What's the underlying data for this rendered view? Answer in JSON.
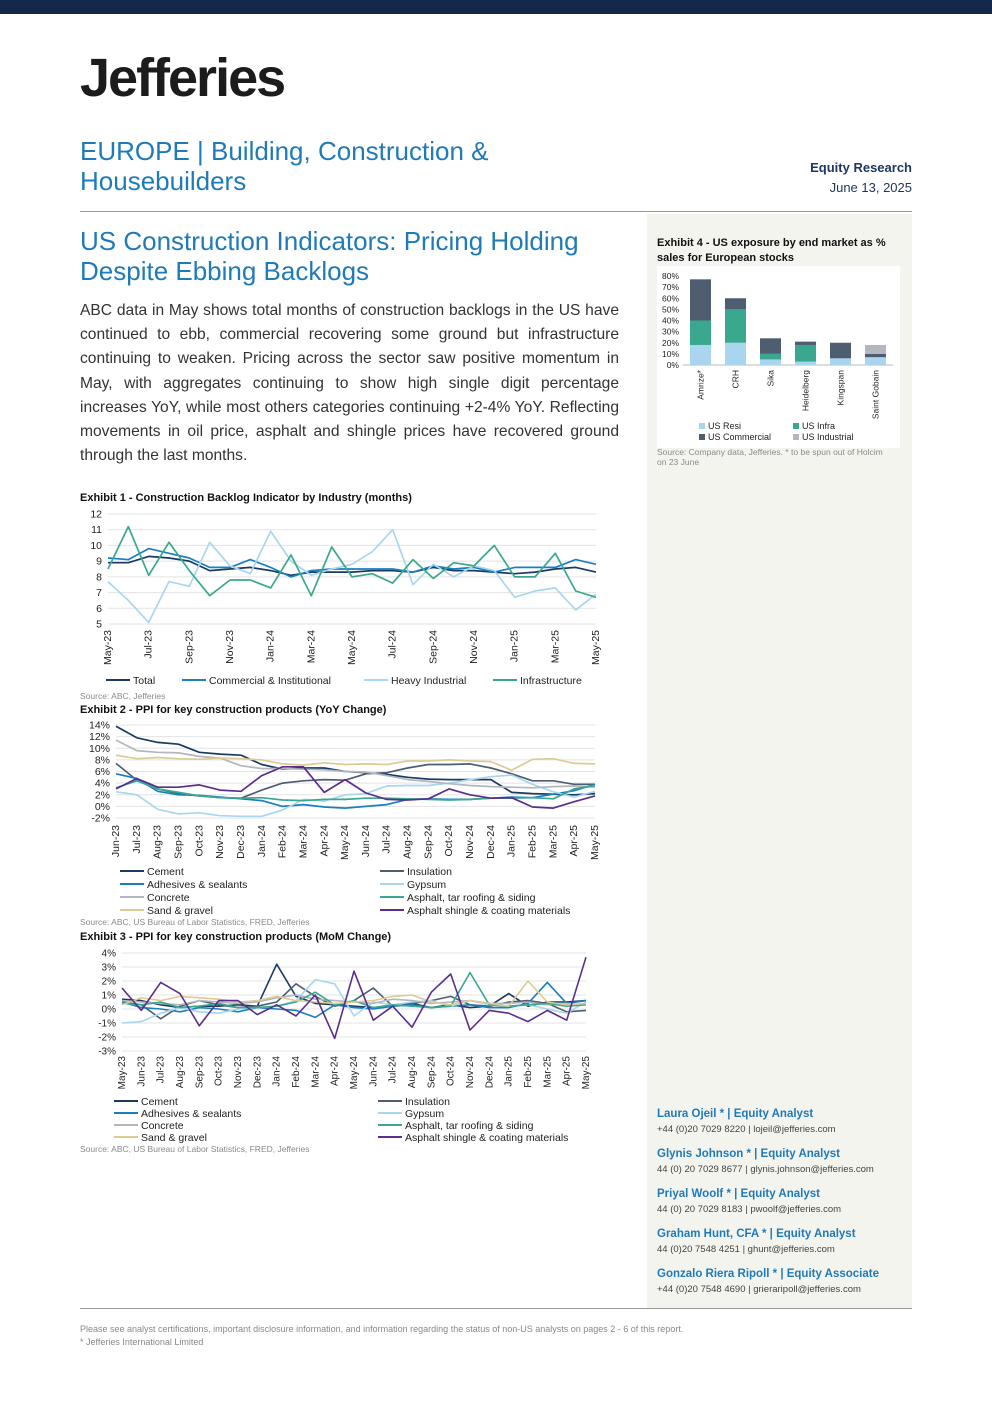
{
  "header": {
    "brand": "Jefferies",
    "sector_line1": "EUROPE | Building, Construction &",
    "sector_line2": "Housebuilders",
    "doc_type": "Equity Research",
    "date": "June 13, 2025"
  },
  "article": {
    "title_line1": "US Construction Indicators: Pricing Holding",
    "title_line2": "Despite Ebbing Backlogs",
    "summary": "ABC data in May shows total months of construction backlogs in the US have continued to ebb, commercial recovering some ground but infrastructure continuing to weaken. Pricing across the sector saw positive momentum in May, with aggregates continuing to show high single digit percentage increases YoY, while most others categories continuing +2-4% YoY. Reflecting movements in oil price, asphalt and shingle prices have recovered ground through the last months."
  },
  "colors": {
    "accent_blue": "#1f7ab8",
    "navy": "#14284b",
    "s_dark_navy": "#1b3a63",
    "s_blue": "#1a7fc0",
    "s_light_blue": "#a9d6ee",
    "s_teal": "#3aa88e",
    "s_slate": "#4e5e70",
    "s_grey": "#b3b6bd",
    "s_beige": "#dccb95",
    "s_purple": "#5b2d8e"
  },
  "chart_data": [
    {
      "id": "exhibit1",
      "type": "line",
      "title": "Exhibit 1 - Construction Backlog Indicator by Industry (months)",
      "source": "Source: ABC, Jefferies",
      "ylim": [
        5,
        12
      ],
      "yticks": [
        "12",
        "11",
        "10",
        "9",
        "8",
        "7",
        "6",
        "5"
      ],
      "x": [
        "May-23",
        "Jun-23",
        "Jul-23",
        "Aug-23",
        "Sep-23",
        "Oct-23",
        "Nov-23",
        "Dec-23",
        "Jan-24",
        "Feb-24",
        "Mar-24",
        "Apr-24",
        "May-24",
        "Jun-24",
        "Jul-24",
        "Aug-24",
        "Sep-24",
        "Oct-24",
        "Nov-24",
        "Dec-24",
        "Jan-25",
        "Feb-25",
        "Mar-25",
        "Apr-25",
        "May-25"
      ],
      "xtick_labels": [
        "May-23",
        "Jul-23",
        "Sep-23",
        "Nov-23",
        "Jan-24",
        "Mar-24",
        "May-24",
        "Jul-24",
        "Sep-24",
        "Nov-24",
        "Jan-25",
        "Mar-25",
        "May-25"
      ],
      "series": [
        {
          "name": "Total",
          "color": "#1b3a63",
          "values": [
            8.9,
            8.9,
            9.3,
            9.2,
            9.0,
            8.4,
            8.5,
            8.6,
            8.4,
            8.1,
            8.3,
            8.3,
            8.3,
            8.4,
            8.4,
            8.3,
            8.6,
            8.4,
            8.4,
            8.3,
            8.2,
            8.3,
            8.5,
            8.6,
            8.3
          ]
        },
        {
          "name": "Commercial & Institutional",
          "color": "#1a7fc0",
          "values": [
            9.2,
            9.1,
            9.8,
            9.5,
            9.2,
            8.6,
            8.6,
            9.1,
            8.6,
            8.0,
            8.4,
            8.5,
            8.5,
            8.5,
            8.5,
            8.3,
            8.7,
            8.5,
            8.6,
            8.3,
            8.6,
            8.6,
            8.6,
            9.1,
            8.8
          ]
        },
        {
          "name": "Heavy Industrial",
          "color": "#a9d6ee",
          "values": [
            7.7,
            6.5,
            5.1,
            7.7,
            7.4,
            10.2,
            8.7,
            8.2,
            10.9,
            9.0,
            8.1,
            8.5,
            8.8,
            9.6,
            11.0,
            7.5,
            8.8,
            8.0,
            8.7,
            8.4,
            6.7,
            7.1,
            7.3,
            5.9,
            6.9
          ]
        },
        {
          "name": "Infrastructure",
          "color": "#3aa88e",
          "values": [
            8.5,
            11.2,
            8.1,
            10.2,
            8.4,
            6.8,
            7.8,
            7.8,
            7.3,
            9.4,
            6.8,
            9.9,
            8.0,
            8.2,
            7.6,
            9.1,
            7.9,
            8.9,
            8.7,
            10.0,
            8.0,
            8.0,
            9.5,
            7.1,
            6.7
          ]
        }
      ]
    },
    {
      "id": "exhibit2",
      "type": "line",
      "title": "Exhibit 2 - PPI for key construction products (YoY Change)",
      "source": "Source: ABC, US Bureau of Labor Statistics, FRED, Jefferies",
      "ylim": [
        -2,
        14
      ],
      "yticks": [
        "14%",
        "12%",
        "10%",
        "8%",
        "6%",
        "4%",
        "2%",
        "0%",
        "-2%"
      ],
      "x": [
        "Jun-23",
        "Jul-23",
        "Aug-23",
        "Sep-23",
        "Oct-23",
        "Nov-23",
        "Dec-23",
        "Jan-24",
        "Feb-24",
        "Mar-24",
        "Apr-24",
        "May-24",
        "Jun-24",
        "Jul-24",
        "Aug-24",
        "Sep-24",
        "Oct-24",
        "Nov-24",
        "Dec-24",
        "Jan-25",
        "Feb-25",
        "Mar-25",
        "Apr-25",
        "May-25"
      ],
      "series": [
        {
          "name": "Cement",
          "color": "#1b3a63",
          "values": [
            13.8,
            11.8,
            11.0,
            10.7,
            9.3,
            9.0,
            8.8,
            7.2,
            6.4,
            6.6,
            6.6,
            6.0,
            5.8,
            5.5,
            5.0,
            4.7,
            4.6,
            4.6,
            4.6,
            2.4,
            2.2,
            2.1,
            2.0,
            2.2
          ]
        },
        {
          "name": "Insulation",
          "color": "#4e5e70",
          "values": [
            7.4,
            4.5,
            3.0,
            2.2,
            1.8,
            1.5,
            1.4,
            2.8,
            4.0,
            4.4,
            4.6,
            4.5,
            5.6,
            5.8,
            6.6,
            7.2,
            7.2,
            7.3,
            6.6,
            5.6,
            4.4,
            4.4,
            3.8,
            3.8
          ]
        },
        {
          "name": "Adhesives & sealants",
          "color": "#1a7fc0",
          "values": [
            5.6,
            4.8,
            2.6,
            2.0,
            1.9,
            1.6,
            1.3,
            1.0,
            0.0,
            0.3,
            -0.1,
            -0.3,
            0.0,
            0.3,
            1.2,
            1.3,
            1.2,
            1.2,
            1.4,
            1.6,
            1.5,
            2.1,
            2.7,
            3.8
          ]
        },
        {
          "name": "Gypsum",
          "color": "#a9d6ee",
          "values": [
            2.5,
            2.0,
            -0.5,
            -1.3,
            -1.1,
            -1.6,
            -1.7,
            -1.7,
            -0.6,
            1.2,
            0.9,
            2.0,
            2.2,
            3.5,
            3.6,
            3.6,
            4.0,
            4.6,
            5.1,
            5.4,
            3.8,
            2.5,
            1.6,
            2.6
          ]
        },
        {
          "name": "Concrete",
          "color": "#b3b6bd",
          "values": [
            11.4,
            9.6,
            9.3,
            9.2,
            8.6,
            8.3,
            7.0,
            6.5,
            6.5,
            6.4,
            6.3,
            6.0,
            5.9,
            5.3,
            4.6,
            4.3,
            3.9,
            3.6,
            3.4,
            3.3,
            3.2,
            3.4,
            3.5,
            3.3
          ]
        },
        {
          "name": "Asphalt, tar roofing & siding",
          "color": "#3aa88e",
          "values": [
            3.2,
            4.4,
            3.0,
            2.4,
            1.8,
            1.5,
            1.4,
            1.5,
            1.1,
            1.0,
            1.2,
            1.2,
            1.4,
            1.4,
            1.3,
            1.2,
            1.1,
            1.2,
            1.4,
            1.4,
            1.5,
            1.3,
            3.0,
            3.6
          ]
        },
        {
          "name": "Sand & gravel",
          "color": "#dccb95",
          "values": [
            8.8,
            8.2,
            8.4,
            8.2,
            8.1,
            8.3,
            8.2,
            8.0,
            7.3,
            7.1,
            7.5,
            7.2,
            7.3,
            7.2,
            7.8,
            7.8,
            8.0,
            7.8,
            7.7,
            6.2,
            8.1,
            8.2,
            7.4,
            7.3
          ]
        },
        {
          "name": "Asphalt shingle & coating materials",
          "color": "#5b2d8e",
          "values": [
            3.0,
            4.8,
            3.3,
            3.3,
            3.7,
            2.8,
            2.6,
            5.3,
            6.8,
            6.8,
            2.4,
            4.6,
            2.3,
            1.2,
            1.1,
            1.3,
            3.0,
            2.0,
            1.4,
            1.5,
            -0.1,
            -0.3,
            0.8,
            1.8
          ]
        }
      ]
    },
    {
      "id": "exhibit3",
      "type": "line",
      "title": "Exhibit 3 - PPI for key construction products (MoM Change)",
      "source": "Source: ABC, US Bureau of Labor Statistics, FRED, Jefferies",
      "ylim": [
        -3,
        4
      ],
      "yticks": [
        "4%",
        "3%",
        "2%",
        "1%",
        "0%",
        "-1%",
        "-2%",
        "-3%"
      ],
      "x": [
        "May-23",
        "Jun-23",
        "Jul-23",
        "Aug-23",
        "Sep-23",
        "Oct-23",
        "Nov-23",
        "Dec-23",
        "Jan-24",
        "Feb-24",
        "Mar-24",
        "Apr-24",
        "May-24",
        "Jun-24",
        "Jul-24",
        "Aug-24",
        "Sep-24",
        "Oct-24",
        "Nov-24",
        "Dec-24",
        "Jan-25",
        "Feb-25",
        "Mar-25",
        "Apr-25",
        "May-25"
      ],
      "series": [
        {
          "name": "Cement",
          "color": "#1b3a63",
          "values": [
            0.7,
            0.6,
            0.3,
            0.1,
            0.2,
            0.2,
            0.3,
            0.2,
            3.2,
            0.9,
            0.4,
            0.3,
            0.2,
            0.1,
            0.2,
            0.4,
            0.1,
            0.3,
            0.1,
            0.2,
            1.1,
            0.2,
            0.5,
            0.5,
            0.6
          ]
        },
        {
          "name": "Insulation",
          "color": "#4e5e70",
          "values": [
            0.5,
            0.3,
            -0.7,
            0.2,
            0.6,
            0.3,
            0.1,
            0.2,
            0.5,
            1.8,
            0.9,
            0.2,
            0.6,
            1.5,
            0.2,
            0.4,
            0.6,
            0.9,
            0.3,
            0.2,
            0.5,
            0.6,
            0.4,
            -0.2,
            -0.1
          ]
        },
        {
          "name": "Adhesives & sealants",
          "color": "#1a7fc0",
          "values": [
            0.5,
            0.1,
            0.0,
            -0.2,
            0.1,
            0.0,
            -0.2,
            0.1,
            0.0,
            -0.1,
            -0.6,
            0.3,
            0.1,
            0.0,
            0.2,
            0.3,
            0.1,
            0.2,
            0.3,
            0.1,
            0.1,
            0.4,
            1.9,
            0.4,
            0.6
          ]
        },
        {
          "name": "Gypsum",
          "color": "#a9d6ee",
          "values": [
            -1.0,
            -0.9,
            -0.3,
            0.1,
            -0.2,
            -0.3,
            0.0,
            0.1,
            0.2,
            0.6,
            2.1,
            1.8,
            -0.5,
            0.5,
            0.3,
            0.5,
            0.6,
            0.2,
            0.6,
            0.3,
            0.2,
            0.3,
            0.0,
            -0.3,
            0.5
          ]
        },
        {
          "name": "Concrete",
          "color": "#b3b6bd",
          "values": [
            0.6,
            0.5,
            0.4,
            0.3,
            0.6,
            0.5,
            0.4,
            0.5,
            0.8,
            1.0,
            0.7,
            0.6,
            0.5,
            0.4,
            0.7,
            0.6,
            0.4,
            0.5,
            0.6,
            0.4,
            0.4,
            0.5,
            0.3,
            0.4,
            0.3
          ]
        },
        {
          "name": "Asphalt, tar roofing & siding",
          "color": "#3aa88e",
          "values": [
            0.4,
            0.3,
            0.5,
            0.1,
            0.2,
            0.4,
            0.1,
            0.1,
            0.2,
            0.5,
            1.2,
            0.3,
            0.6,
            0.1,
            0.3,
            0.2,
            0.1,
            0.2,
            2.6,
            0.3,
            0.2,
            0.3,
            0.4,
            0.2,
            0.3
          ]
        },
        {
          "name": "Sand & gravel",
          "color": "#dccb95",
          "values": [
            0.3,
            0.8,
            0.6,
            0.9,
            0.8,
            0.7,
            0.5,
            0.6,
            0.9,
            0.6,
            0.5,
            0.4,
            0.5,
            0.6,
            0.9,
            1.0,
            0.5,
            0.3,
            0.6,
            0.4,
            0.2,
            2.0,
            0.5,
            0.3,
            0.4
          ]
        },
        {
          "name": "Asphalt shingle & coating materials",
          "color": "#5b2d8e",
          "values": [
            1.5,
            -0.1,
            1.9,
            1.1,
            -1.2,
            0.6,
            0.6,
            -0.4,
            0.3,
            -0.5,
            1.0,
            -2.1,
            2.7,
            -0.8,
            0.2,
            -1.3,
            1.2,
            2.5,
            -1.5,
            -0.1,
            -0.3,
            -0.9,
            -0.1,
            -0.8,
            3.7
          ]
        }
      ]
    },
    {
      "id": "exhibit4",
      "type": "bar",
      "title_line1": "Exhibit 4 - US exposure by end market as %",
      "title_line2": "sales for European stocks",
      "source_line1": "Source: Company data, Jefferies. * to be spun out of Holcim",
      "source_line2": "on 23 June",
      "ylim": [
        0,
        80
      ],
      "yticks": [
        "80%",
        "70%",
        "60%",
        "50%",
        "40%",
        "30%",
        "20%",
        "10%",
        "0%"
      ],
      "categories": [
        "Amrize*",
        "CRH",
        "Sika",
        "Heidelberg",
        "Kingspan",
        "Saint Gobain"
      ],
      "series": [
        {
          "name": "US Resi",
          "color": "#a9d6ee",
          "values": [
            18,
            20,
            5,
            3,
            6,
            7
          ]
        },
        {
          "name": "US Infra",
          "color": "#3aa88e",
          "values": [
            22,
            30,
            5,
            15,
            0,
            0
          ]
        },
        {
          "name": "US Commercial",
          "color": "#4e5e70",
          "values": [
            37,
            10,
            14,
            3,
            14,
            3
          ]
        },
        {
          "name": "US Industrial",
          "color": "#b3b6bd",
          "values": [
            0,
            0,
            0,
            0,
            0,
            8
          ]
        }
      ]
    }
  ],
  "analysts": [
    {
      "name": "Laura Ojeil *  | Equity Analyst",
      "contact": "+44 (0)20 7029 8220 | lojeil@jefferies.com"
    },
    {
      "name": "Glynis Johnson *  | Equity Analyst",
      "contact": "44 (0) 20 7029 8677 | glynis.johnson@jefferies.com"
    },
    {
      "name": "Priyal Woolf *  | Equity Analyst",
      "contact": "44 (0) 20 7029 8183 | pwoolf@jefferies.com"
    },
    {
      "name": "Graham Hunt, CFA *  | Equity Analyst",
      "contact": "44 (0)20 7548 4251 | ghunt@jefferies.com"
    },
    {
      "name": "Gonzalo Riera Ripoll *  | Equity Associate",
      "contact": "+44 (0)20 7548 4690 | grieraripoll@jefferies.com"
    }
  ],
  "footer": {
    "disclaimer": "Please see analyst certifications, important disclosure information, and information regarding the status of non-US analysts on pages  2 - 6 of this report.",
    "note": "* Jefferies International Limited"
  }
}
